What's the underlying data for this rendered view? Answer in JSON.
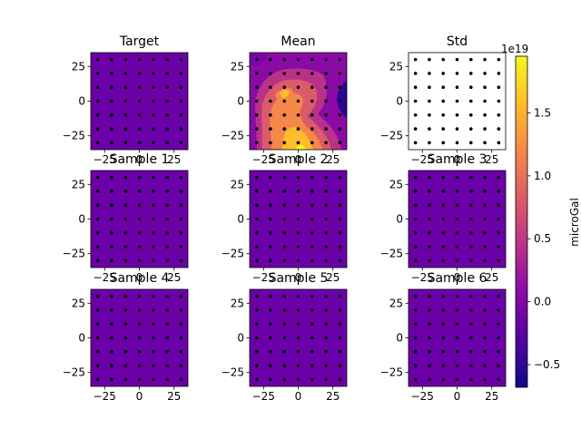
{
  "figure": {
    "colorbar": {
      "label": "microGal",
      "offset_text": "1e19",
      "ticks": [
        -0.5,
        0.0,
        0.5,
        1.0,
        1.5
      ],
      "tick_labels": [
        "−0.5",
        "0.0",
        "0.5",
        "1.0",
        "1.5"
      ],
      "range": [
        -0.68,
        1.95
      ],
      "colormap": "plasma"
    },
    "sensor_points": {
      "count_per_axis": 7,
      "min": -30,
      "max": 30,
      "step": 10
    }
  },
  "chart_data": [
    {
      "type": "heatmap",
      "title": "Target",
      "xlim": [
        -35,
        35
      ],
      "ylim": [
        -35,
        35
      ],
      "xticks": [
        "−25",
        "0",
        "25"
      ],
      "yticks": [
        "−25",
        "0",
        "25"
      ],
      "fill": "uniform",
      "value": 0.0,
      "fill_color": "#6c00a8"
    },
    {
      "type": "heatmap",
      "title": "Mean",
      "xlim": [
        -35,
        35
      ],
      "ylim": [
        -35,
        35
      ],
      "xticks": [
        "−25",
        "0",
        "25"
      ],
      "yticks": [
        "−25",
        "0",
        "25"
      ],
      "fill": "contour",
      "levels": [
        {
          "value": 0.15,
          "color": "#8b0aa5"
        },
        {
          "value": 0.45,
          "color": "#b93289"
        },
        {
          "value": 0.75,
          "color": "#db5c68"
        },
        {
          "value": 1.05,
          "color": "#f48849"
        },
        {
          "value": 1.35,
          "color": "#febd2a"
        },
        {
          "value": 1.7,
          "color": "#f0f921"
        }
      ],
      "low_region": {
        "value": -0.6,
        "color": "#2c0594"
      }
    },
    {
      "type": "heatmap",
      "title": "Std",
      "xlim": [
        -35,
        35
      ],
      "ylim": [
        -35,
        35
      ],
      "xticks": [
        "−25",
        "0",
        "25"
      ],
      "yticks": [
        "−25",
        "0",
        "25"
      ],
      "fill": "empty",
      "fill_color": "#ffffff"
    },
    {
      "type": "heatmap",
      "title": "Sample 1",
      "xlim": [
        -35,
        35
      ],
      "ylim": [
        -35,
        35
      ],
      "xticks": [
        "−25",
        "0",
        "25"
      ],
      "yticks": [
        "−25",
        "0",
        "25"
      ],
      "fill": "uniform",
      "value": 0.0,
      "fill_color": "#6c00a8"
    },
    {
      "type": "heatmap",
      "title": "Sample 2",
      "xlim": [
        -35,
        35
      ],
      "ylim": [
        -35,
        35
      ],
      "xticks": [
        "−25",
        "0",
        "25"
      ],
      "yticks": [
        "−25",
        "0",
        "25"
      ],
      "fill": "uniform",
      "value": 0.0,
      "fill_color": "#6c00a8"
    },
    {
      "type": "heatmap",
      "title": "Sample 3",
      "xlim": [
        -35,
        35
      ],
      "ylim": [
        -35,
        35
      ],
      "xticks": [
        "−25",
        "0",
        "25"
      ],
      "yticks": [
        "−25",
        "0",
        "25"
      ],
      "fill": "uniform",
      "value": 0.0,
      "fill_color": "#6c00a8"
    },
    {
      "type": "heatmap",
      "title": "Sample 4",
      "xlim": [
        -35,
        35
      ],
      "ylim": [
        -35,
        35
      ],
      "xticks": [
        "−25",
        "0",
        "25"
      ],
      "yticks": [
        "−25",
        "0",
        "25"
      ],
      "fill": "uniform",
      "value": 0.0,
      "fill_color": "#6c00a8"
    },
    {
      "type": "heatmap",
      "title": "Sample 5",
      "xlim": [
        -35,
        35
      ],
      "ylim": [
        -35,
        35
      ],
      "xticks": [
        "−25",
        "0",
        "25"
      ],
      "yticks": [
        "−25",
        "0",
        "25"
      ],
      "fill": "uniform",
      "value": 0.0,
      "fill_color": "#6c00a8"
    },
    {
      "type": "heatmap",
      "title": "Sample 6",
      "xlim": [
        -35,
        35
      ],
      "ylim": [
        -35,
        35
      ],
      "xticks": [
        "−25",
        "0",
        "25"
      ],
      "yticks": [
        "−25",
        "0",
        "25"
      ],
      "fill": "uniform",
      "value": 0.0,
      "fill_color": "#6c00a8"
    }
  ]
}
